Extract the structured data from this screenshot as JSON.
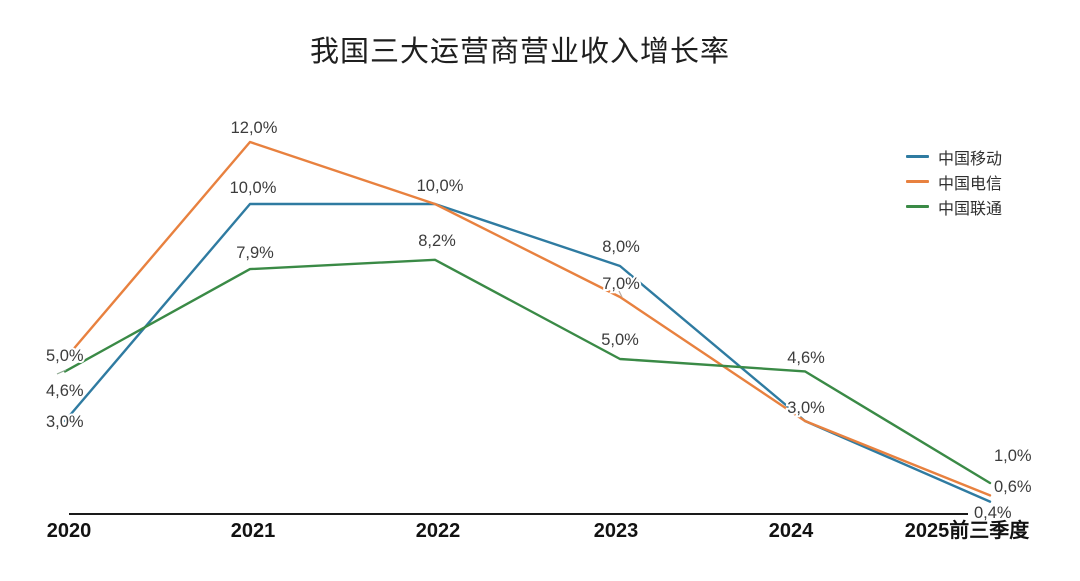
{
  "title": "我国三大运营商营业收入增长率",
  "chart_data": {
    "type": "line",
    "title": "我国三大运营商营业收入增长率",
    "categories": [
      "2020",
      "2021",
      "2022",
      "2023",
      "2024",
      "2025前三季度"
    ],
    "series": [
      {
        "name": "中国移动",
        "color": "#2f7ba1",
        "values": [
          3.0,
          10.0,
          10.0,
          8.0,
          3.0,
          0.4
        ]
      },
      {
        "name": "中国电信",
        "color": "#e8813f",
        "values": [
          5.0,
          12.0,
          10.0,
          7.0,
          3.0,
          0.6
        ]
      },
      {
        "name": "中国联通",
        "color": "#3a8a46",
        "values": [
          4.6,
          7.9,
          8.2,
          5.0,
          4.6,
          1.0
        ]
      }
    ],
    "point_labels": [
      {
        "id": "t0",
        "series": "中国电信",
        "category": "2020",
        "text": "5,0%"
      },
      {
        "id": "u0",
        "series": "中国联通",
        "category": "2020",
        "text": "4,6%"
      },
      {
        "id": "m0",
        "series": "中国移动",
        "category": "2020",
        "text": "3,0%"
      },
      {
        "id": "t1",
        "series": "中国电信",
        "category": "2021",
        "text": "12,0%"
      },
      {
        "id": "m1",
        "series": "中国移动",
        "category": "2021",
        "text": "10,0%"
      },
      {
        "id": "u1",
        "series": "中国联通",
        "category": "2021",
        "text": "7,9%"
      },
      {
        "id": "mt2",
        "series": "中国移动、中国电信",
        "category": "2022",
        "text": "10,0%"
      },
      {
        "id": "u2",
        "series": "中国联通",
        "category": "2022",
        "text": "8,2%"
      },
      {
        "id": "m3",
        "series": "中国移动",
        "category": "2023",
        "text": "8,0%"
      },
      {
        "id": "t3",
        "series": "中国电信",
        "category": "2023",
        "text": "7,0%"
      },
      {
        "id": "u3",
        "series": "中国联通",
        "category": "2023",
        "text": "5,0%"
      },
      {
        "id": "u4",
        "series": "中国联通",
        "category": "2024",
        "text": "4,6%"
      },
      {
        "id": "mt4",
        "series": "中国移动、中国电信",
        "category": "2024",
        "text": "3,0%"
      },
      {
        "id": "u5",
        "series": "中国联通",
        "category": "2025前三季度",
        "text": "1,0%"
      },
      {
        "id": "t5",
        "series": "中国电信",
        "category": "2025前三季度",
        "text": "0,6%"
      },
      {
        "id": "m5",
        "series": "中国移动",
        "category": "2025前三季度",
        "text": "0,4%"
      }
    ],
    "xlabel": "",
    "ylabel": "",
    "ylim": [
      0,
      13
    ],
    "value_suffix": "%",
    "decimal_separator": ",",
    "grid": false,
    "y_axis_visible": false,
    "legend_position": "top-right",
    "axis_color": "#1a1a1a"
  }
}
